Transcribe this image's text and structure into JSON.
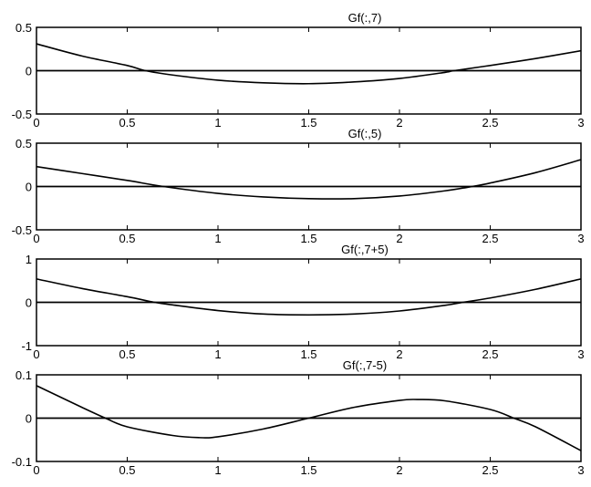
{
  "chart_data": [
    {
      "type": "line",
      "title": "Gf(:,7)",
      "xlim": [
        0,
        3
      ],
      "ylim": [
        -0.5,
        0.5
      ],
      "xticks": [
        "0",
        "0.5",
        "1",
        "1.5",
        "2",
        "2.5",
        "3"
      ],
      "yticks": [
        "-0.5",
        "0",
        "0.5"
      ],
      "zero_line": true,
      "x": [
        0,
        0.25,
        0.5,
        0.6,
        0.75,
        1,
        1.25,
        1.5,
        1.75,
        2,
        2.25,
        2.3,
        2.5,
        2.75,
        3
      ],
      "y": [
        0.31,
        0.17,
        0.06,
        0,
        -0.05,
        -0.11,
        -0.14,
        -0.15,
        -0.13,
        -0.09,
        -0.02,
        0,
        0.06,
        0.14,
        0.23
      ]
    },
    {
      "type": "line",
      "title": "Gf(:,5)",
      "xlim": [
        0,
        3
      ],
      "ylim": [
        -0.5,
        0.5
      ],
      "xticks": [
        "0",
        "0.5",
        "1",
        "1.5",
        "2",
        "2.5",
        "3"
      ],
      "yticks": [
        "-0.5",
        "0",
        "0.5"
      ],
      "zero_line": true,
      "x": [
        0,
        0.25,
        0.5,
        0.7,
        1,
        1.25,
        1.5,
        1.75,
        2,
        2.25,
        2.4,
        2.5,
        2.75,
        3
      ],
      "y": [
        0.23,
        0.15,
        0.07,
        0,
        -0.08,
        -0.12,
        -0.14,
        -0.14,
        -0.11,
        -0.05,
        0,
        0.04,
        0.16,
        0.31
      ]
    },
    {
      "type": "line",
      "title": "Gf(:,7+5)",
      "xlim": [
        0,
        3
      ],
      "ylim": [
        -1,
        1
      ],
      "xticks": [
        "0",
        "0.5",
        "1",
        "1.5",
        "2",
        "2.5",
        "3"
      ],
      "yticks": [
        "-1",
        "0",
        "1"
      ],
      "zero_line": true,
      "x": [
        0,
        0.25,
        0.5,
        0.65,
        0.75,
        1,
        1.25,
        1.5,
        1.75,
        2,
        2.25,
        2.35,
        2.5,
        2.75,
        3
      ],
      "y": [
        0.54,
        0.32,
        0.13,
        0,
        -0.06,
        -0.19,
        -0.27,
        -0.29,
        -0.27,
        -0.2,
        -0.07,
        0,
        0.1,
        0.3,
        0.54
      ]
    },
    {
      "type": "line",
      "title": "Gf(:,7-5)",
      "xlim": [
        0,
        3
      ],
      "ylim": [
        -0.1,
        0.1
      ],
      "xticks": [
        "0",
        "0.5",
        "1",
        "1.5",
        "2",
        "2.5",
        "3"
      ],
      "yticks": [
        "-0.1",
        "0",
        "0.1"
      ],
      "zero_line": true,
      "x": [
        0,
        0.25,
        0.38,
        0.5,
        0.75,
        0.9,
        1,
        1.25,
        1.5,
        1.75,
        2,
        2.1,
        2.25,
        2.5,
        2.63,
        2.75,
        3
      ],
      "y": [
        0.075,
        0.025,
        0,
        -0.02,
        -0.04,
        -0.045,
        -0.043,
        -0.025,
        0,
        0.025,
        0.041,
        0.043,
        0.04,
        0.02,
        0,
        -0.02,
        -0.075
      ]
    }
  ]
}
